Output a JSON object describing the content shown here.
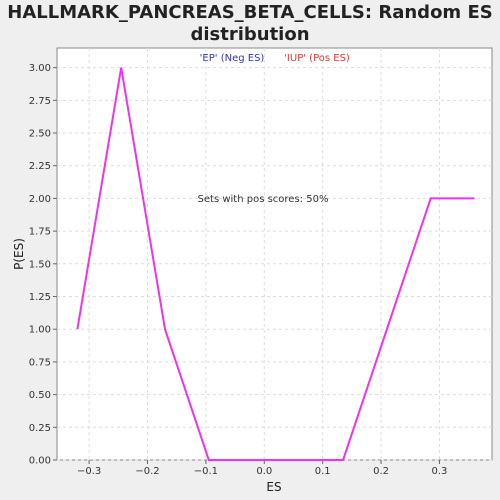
{
  "chart_data": {
    "type": "line",
    "title_line1": "HALLMARK_PANCREAS_BETA_CELLS: Random ES",
    "title_line2": "distribution",
    "xlabel": "ES",
    "ylabel": "P(ES)",
    "legend": {
      "neg_label": "'EP' (Neg ES)",
      "pos_label": "'IUP' (Pos ES)",
      "neg_color": "#3333cc",
      "pos_color": "#ee3333"
    },
    "annotation": "Sets with pos scores: 50%",
    "xlim": [
      -0.355,
      0.39
    ],
    "ylim": [
      0,
      3.15
    ],
    "x_ticks": [
      -0.3,
      -0.2,
      -0.1,
      0.0,
      0.1,
      0.2,
      0.3
    ],
    "x_tick_labels": [
      "−0.3",
      "−0.2",
      "−0.1",
      "0.0",
      "0.1",
      "0.2",
      "0.3"
    ],
    "y_ticks": [
      0,
      0.25,
      0.5,
      0.75,
      1.0,
      1.25,
      1.5,
      1.75,
      2.0,
      2.25,
      2.5,
      2.75,
      3.0
    ],
    "y_tick_labels": [
      "0.00",
      "0.25",
      "0.50",
      "0.75",
      "1.00",
      "1.25",
      "1.50",
      "1.75",
      "2.00",
      "2.25",
      "2.50",
      "2.75",
      "3.00"
    ],
    "grid": true,
    "line_color": "#ee33ee",
    "series": [
      {
        "x": [
          -0.32,
          -0.245,
          -0.17,
          -0.095,
          0.135,
          0.285,
          0.36
        ],
        "y": [
          1.0,
          3.0,
          1.0,
          0.0,
          0.0,
          2.0,
          2.0
        ]
      }
    ]
  }
}
